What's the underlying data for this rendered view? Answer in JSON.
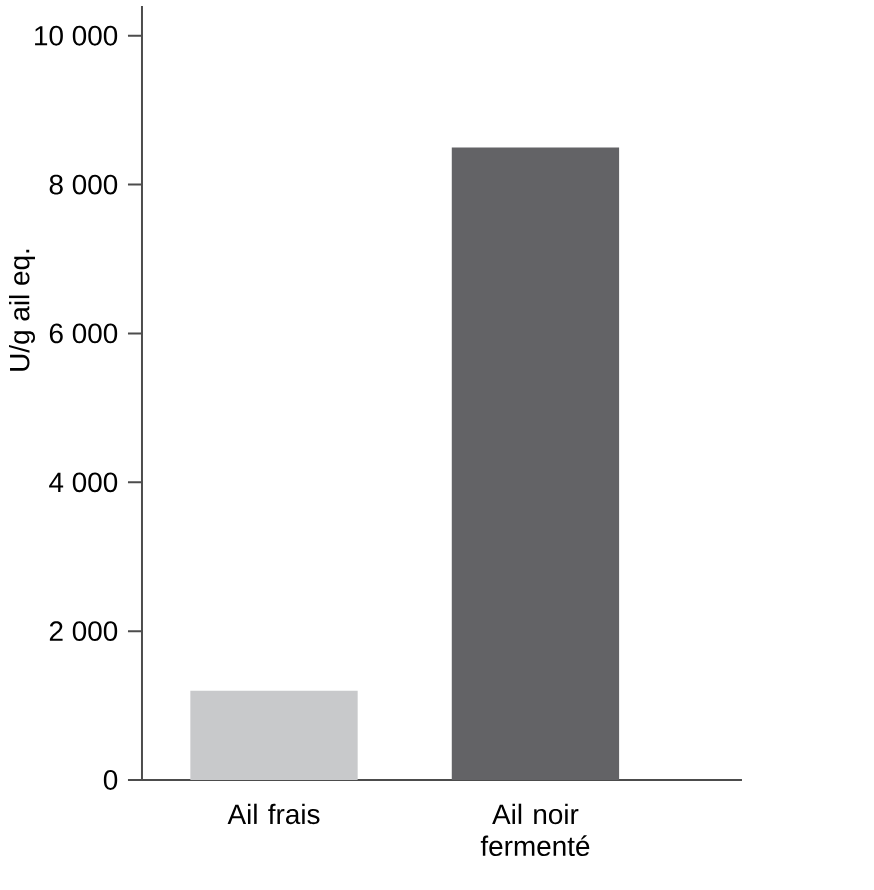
{
  "chart_data": {
    "type": "bar",
    "ylabel": "U/g ail eq.",
    "categories": [
      "Ail frais",
      "Ail noir fermenté"
    ],
    "values": [
      1200,
      8500
    ],
    "colors": [
      "#c8c9cb",
      "#636366"
    ],
    "ylim": [
      0,
      10400
    ],
    "yticks": [
      0,
      {
        "value": 2000,
        "label": "2 000"
      },
      {
        "value": 4000,
        "label": "4 000"
      },
      {
        "value": 6000,
        "label": "6 000"
      },
      {
        "value": 8000,
        "label": "8 000"
      },
      {
        "value": 10000,
        "label": "10 000"
      }
    ],
    "grid": false
  }
}
